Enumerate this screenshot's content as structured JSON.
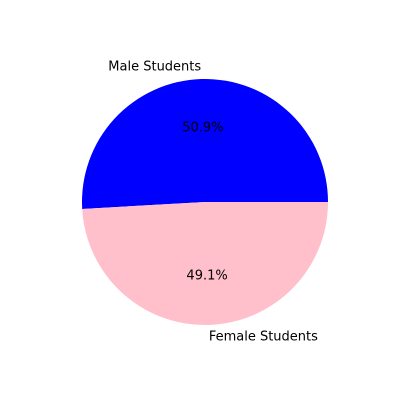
{
  "chart_data": {
    "type": "pie",
    "title": "",
    "start_angle": 0,
    "direction": "counterclockwise",
    "slices": [
      {
        "label": "Male Students",
        "value": 50.9,
        "pct_label": "50.9%",
        "color": "#0000ff"
      },
      {
        "label": "Female Students",
        "value": 49.1,
        "pct_label": "49.1%",
        "color": "#ffc0cb"
      }
    ]
  }
}
